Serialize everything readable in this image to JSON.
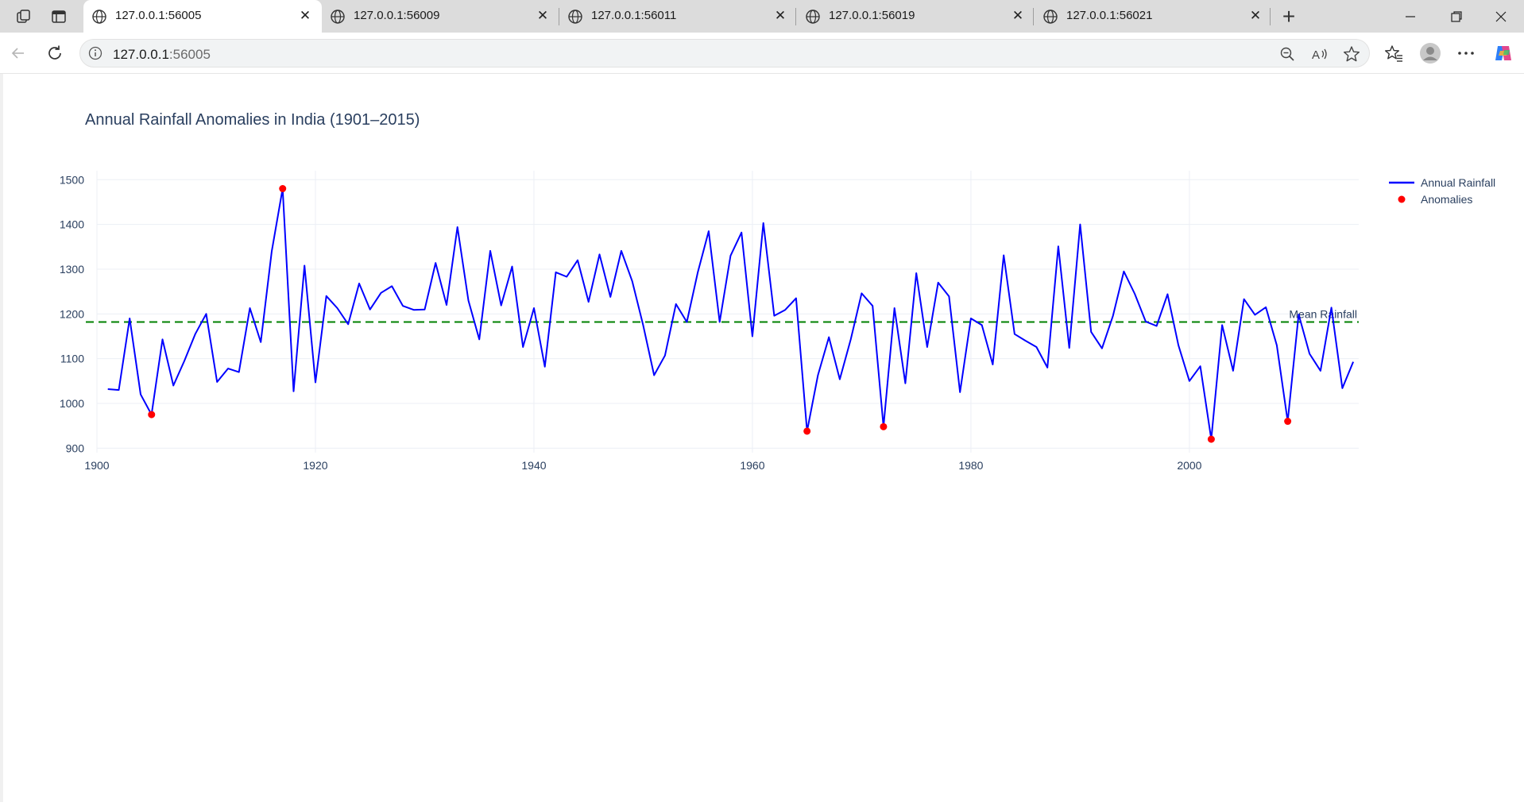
{
  "browser": {
    "tabs": [
      {
        "title": "127.0.0.1:56005",
        "active": true
      },
      {
        "title": "127.0.0.1:56009",
        "active": false
      },
      {
        "title": "127.0.0.1:56011",
        "active": false
      },
      {
        "title": "127.0.0.1:56019",
        "active": false
      },
      {
        "title": "127.0.0.1:56021",
        "active": false
      }
    ],
    "address": {
      "host": "127.0.0.1",
      "port": ":56005"
    },
    "icons": {
      "workspaces": "workspaces-icon",
      "tab_actions": "tab-actions-icon",
      "globe": "globe-icon",
      "close": "close-icon",
      "new_tab": "plus-icon",
      "back": "back-arrow-icon",
      "refresh": "refresh-icon",
      "info": "info-icon",
      "zoom": "zoom-out-icon",
      "read_aloud": "read-aloud-icon",
      "favorite": "star-icon",
      "favorites": "favorites-icon",
      "profile": "profile-icon",
      "more": "more-icon",
      "copilot": "copilot-icon"
    }
  },
  "chart_data": {
    "type": "line",
    "title": "Annual Rainfall Anomalies in India (1901–2015)",
    "xlabel": "",
    "ylabel": "",
    "xlim": [
      1900,
      2015.5
    ],
    "ylim": [
      890,
      1520
    ],
    "xticks": [
      1900,
      1920,
      1940,
      1960,
      1980,
      2000
    ],
    "yticks": [
      900,
      1000,
      1100,
      1200,
      1300,
      1400,
      1500
    ],
    "grid": true,
    "legend_position": "top-right",
    "colors": {
      "line": "#0000ff",
      "anomaly": "#ff0000",
      "mean": "#008000",
      "grid": "#eceff5",
      "text": "#2a3f5f"
    },
    "series": [
      {
        "name": "Annual Rainfall",
        "x": [
          1901,
          1902,
          1903,
          1904,
          1905,
          1906,
          1907,
          1908,
          1909,
          1910,
          1911,
          1912,
          1913,
          1914,
          1915,
          1916,
          1917,
          1918,
          1919,
          1920,
          1921,
          1922,
          1923,
          1924,
          1925,
          1926,
          1927,
          1928,
          1929,
          1930,
          1931,
          1932,
          1933,
          1934,
          1935,
          1936,
          1937,
          1938,
          1939,
          1940,
          1941,
          1942,
          1943,
          1944,
          1945,
          1946,
          1947,
          1948,
          1949,
          1950,
          1951,
          1952,
          1953,
          1954,
          1955,
          1956,
          1957,
          1958,
          1959,
          1960,
          1961,
          1962,
          1963,
          1964,
          1965,
          1966,
          1967,
          1968,
          1969,
          1970,
          1971,
          1972,
          1973,
          1974,
          1975,
          1976,
          1977,
          1978,
          1979,
          1980,
          1981,
          1982,
          1983,
          1984,
          1985,
          1986,
          1987,
          1988,
          1989,
          1990,
          1991,
          1992,
          1993,
          1994,
          1995,
          1996,
          1997,
          1998,
          1999,
          2000,
          2001,
          2002,
          2003,
          2004,
          2005,
          2006,
          2007,
          2008,
          2009,
          2010,
          2011,
          2012,
          2013,
          2014,
          2015
        ],
        "values": [
          1032,
          1030,
          1190,
          1020,
          975,
          1143,
          1040,
          1095,
          1155,
          1200,
          1048,
          1078,
          1070,
          1213,
          1137,
          1340,
          1480,
          1027,
          1308,
          1047,
          1240,
          1213,
          1177,
          1268,
          1210,
          1247,
          1262,
          1218,
          1209,
          1210,
          1314,
          1220,
          1394,
          1230,
          1143,
          1341,
          1219,
          1306,
          1126,
          1213,
          1082,
          1293,
          1283,
          1320,
          1227,
          1333,
          1238,
          1341,
          1273,
          1175,
          1063,
          1107,
          1222,
          1182,
          1293,
          1385,
          1182,
          1330,
          1382,
          1150,
          1403,
          1196,
          1209,
          1235,
          938,
          1063,
          1148,
          1054,
          1143,
          1246,
          1218,
          948,
          1213,
          1045,
          1291,
          1126,
          1270,
          1239,
          1025,
          1190,
          1175,
          1087,
          1331,
          1155,
          1140,
          1126,
          1080,
          1351,
          1124,
          1400,
          1160,
          1123,
          1195,
          1295,
          1245,
          1183,
          1173,
          1244,
          1130,
          1050,
          1083,
          920,
          1175,
          1073,
          1233,
          1198,
          1215,
          1130,
          960,
          1199,
          1111,
          1073,
          1214,
          1034,
          1093
        ]
      },
      {
        "name": "Anomalies",
        "x": [
          1905,
          1917,
          1965,
          1972,
          2002,
          2009
        ],
        "values": [
          975,
          1480,
          938,
          948,
          920,
          960
        ]
      }
    ],
    "mean_line": {
      "value": 1182,
      "label": "Mean Rainfall"
    }
  }
}
